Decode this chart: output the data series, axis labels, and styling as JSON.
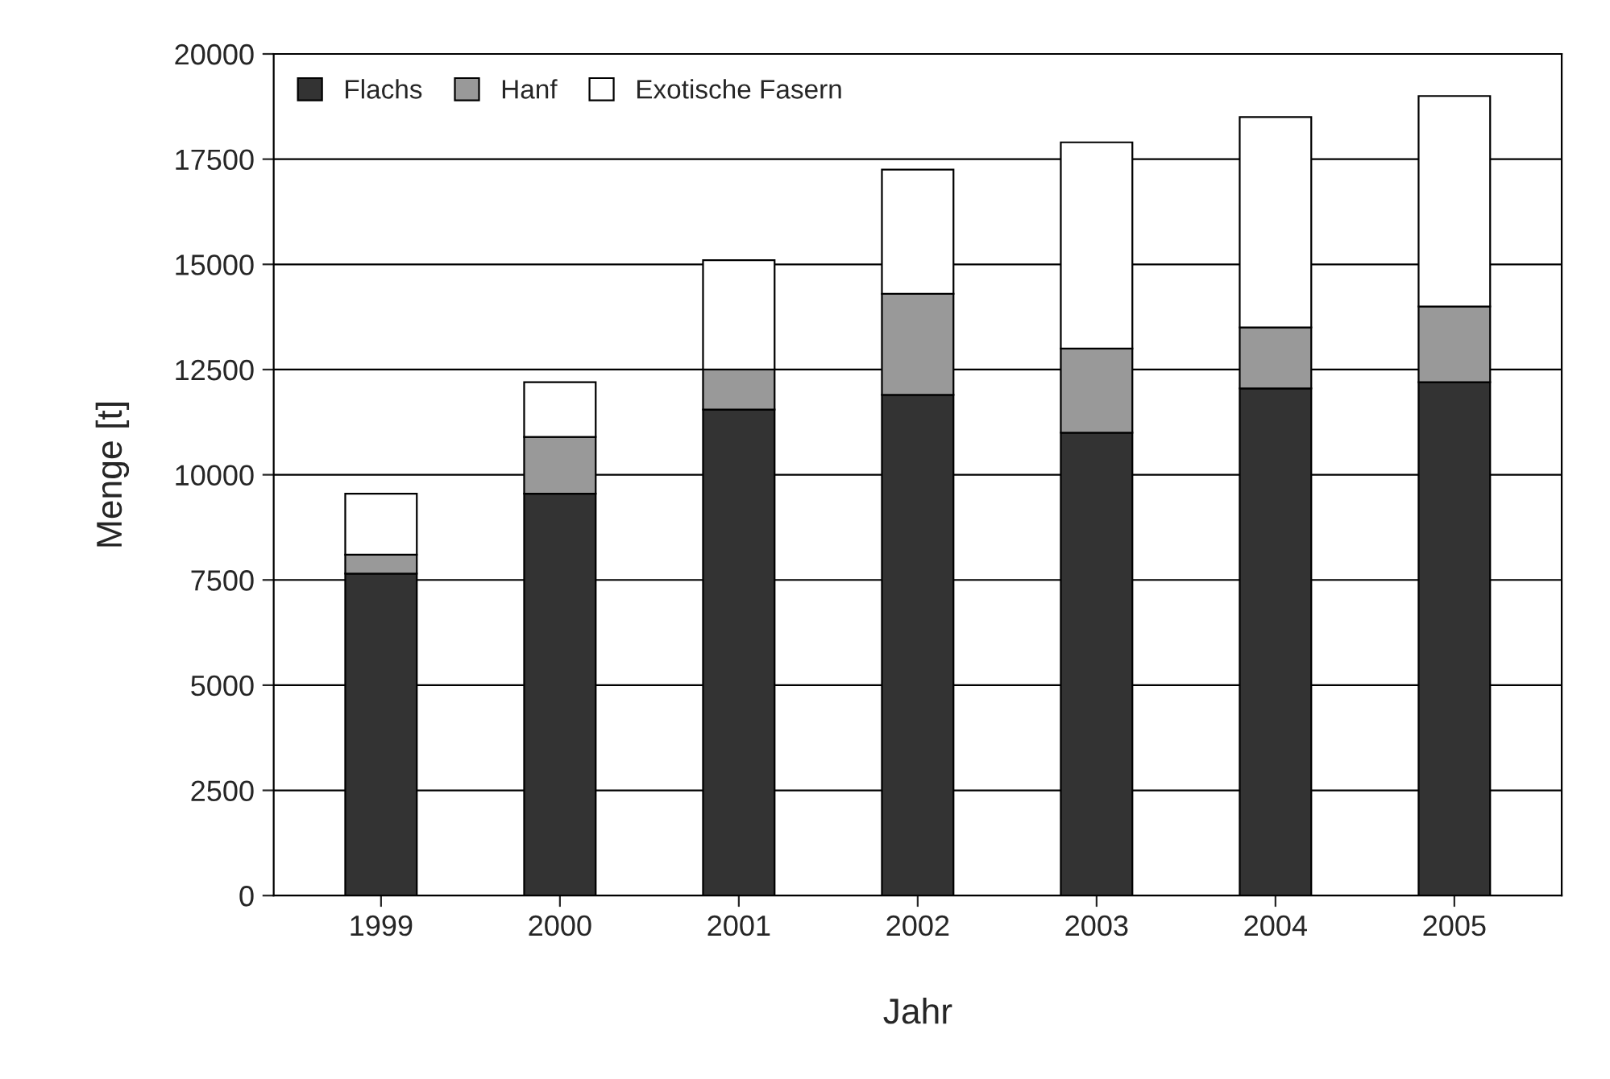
{
  "chart_data": {
    "type": "bar",
    "stacked": true,
    "xlabel": "Jahr",
    "ylabel": "Menge [t]",
    "categories": [
      "1999",
      "2000",
      "2001",
      "2002",
      "2003",
      "2004",
      "2005"
    ],
    "series": [
      {
        "name": "Flachs",
        "color": "#333333",
        "values": [
          7650,
          9550,
          11550,
          11900,
          11000,
          12050,
          12200
        ]
      },
      {
        "name": "Hanf",
        "color": "#999999",
        "values": [
          450,
          1350,
          950,
          2400,
          2000,
          1450,
          1800
        ]
      },
      {
        "name": "Exotische Fasern",
        "color": "#ffffff",
        "values": [
          1450,
          1300,
          2600,
          2950,
          4900,
          5000,
          5000
        ]
      }
    ],
    "ylim": [
      0,
      20000
    ],
    "yticks": [
      0,
      2500,
      5000,
      7500,
      10000,
      12500,
      15000,
      17500,
      20000
    ],
    "grid": "y",
    "legend": "top left"
  }
}
